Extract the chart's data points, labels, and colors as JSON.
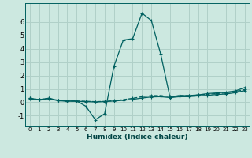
{
  "xlabel": "Humidex (Indice chaleur)",
  "ylabel": "",
  "xlim": [
    -0.5,
    23.5
  ],
  "ylim": [
    -1.8,
    7.4
  ],
  "bg_color": "#cce8e0",
  "grid_color": "#b0d0c8",
  "line_color": "#006060",
  "line1_x": [
    0,
    1,
    2,
    3,
    4,
    5,
    6,
    7,
    8,
    9,
    10,
    11,
    12,
    13,
    14,
    15,
    16,
    17,
    18,
    19,
    20,
    21,
    22,
    23
  ],
  "line1_y": [
    0.3,
    0.2,
    0.3,
    0.15,
    0.1,
    0.1,
    -0.3,
    -1.3,
    -0.85,
    2.7,
    4.65,
    4.75,
    6.65,
    6.1,
    3.6,
    0.35,
    0.5,
    0.5,
    0.55,
    0.65,
    0.7,
    0.75,
    0.85,
    1.1
  ],
  "line2_x": [
    0,
    1,
    2,
    3,
    4,
    5,
    6,
    7,
    8,
    9,
    10,
    11,
    12,
    13,
    14,
    15,
    16,
    17,
    18,
    19,
    20,
    21,
    22,
    23
  ],
  "line2_y": [
    0.3,
    0.2,
    0.3,
    0.15,
    0.1,
    0.1,
    0.08,
    0.05,
    0.07,
    0.12,
    0.2,
    0.3,
    0.42,
    0.5,
    0.5,
    0.42,
    0.5,
    0.5,
    0.55,
    0.6,
    0.65,
    0.7,
    0.8,
    0.95
  ],
  "line3_x": [
    0,
    1,
    2,
    3,
    4,
    5,
    6,
    7,
    8,
    9,
    10,
    11,
    12,
    13,
    14,
    15,
    16,
    17,
    18,
    19,
    20,
    21,
    22,
    23
  ],
  "line3_y": [
    0.25,
    0.18,
    0.28,
    0.12,
    0.08,
    0.08,
    0.05,
    0.03,
    0.05,
    0.1,
    0.15,
    0.22,
    0.32,
    0.4,
    0.42,
    0.35,
    0.42,
    0.42,
    0.48,
    0.52,
    0.58,
    0.62,
    0.72,
    0.88
  ],
  "yticks": [
    -1,
    0,
    1,
    2,
    3,
    4,
    5,
    6
  ],
  "xticks": [
    0,
    1,
    2,
    3,
    4,
    5,
    6,
    7,
    8,
    9,
    10,
    11,
    12,
    13,
    14,
    15,
    16,
    17,
    18,
    19,
    20,
    21,
    22,
    23
  ]
}
